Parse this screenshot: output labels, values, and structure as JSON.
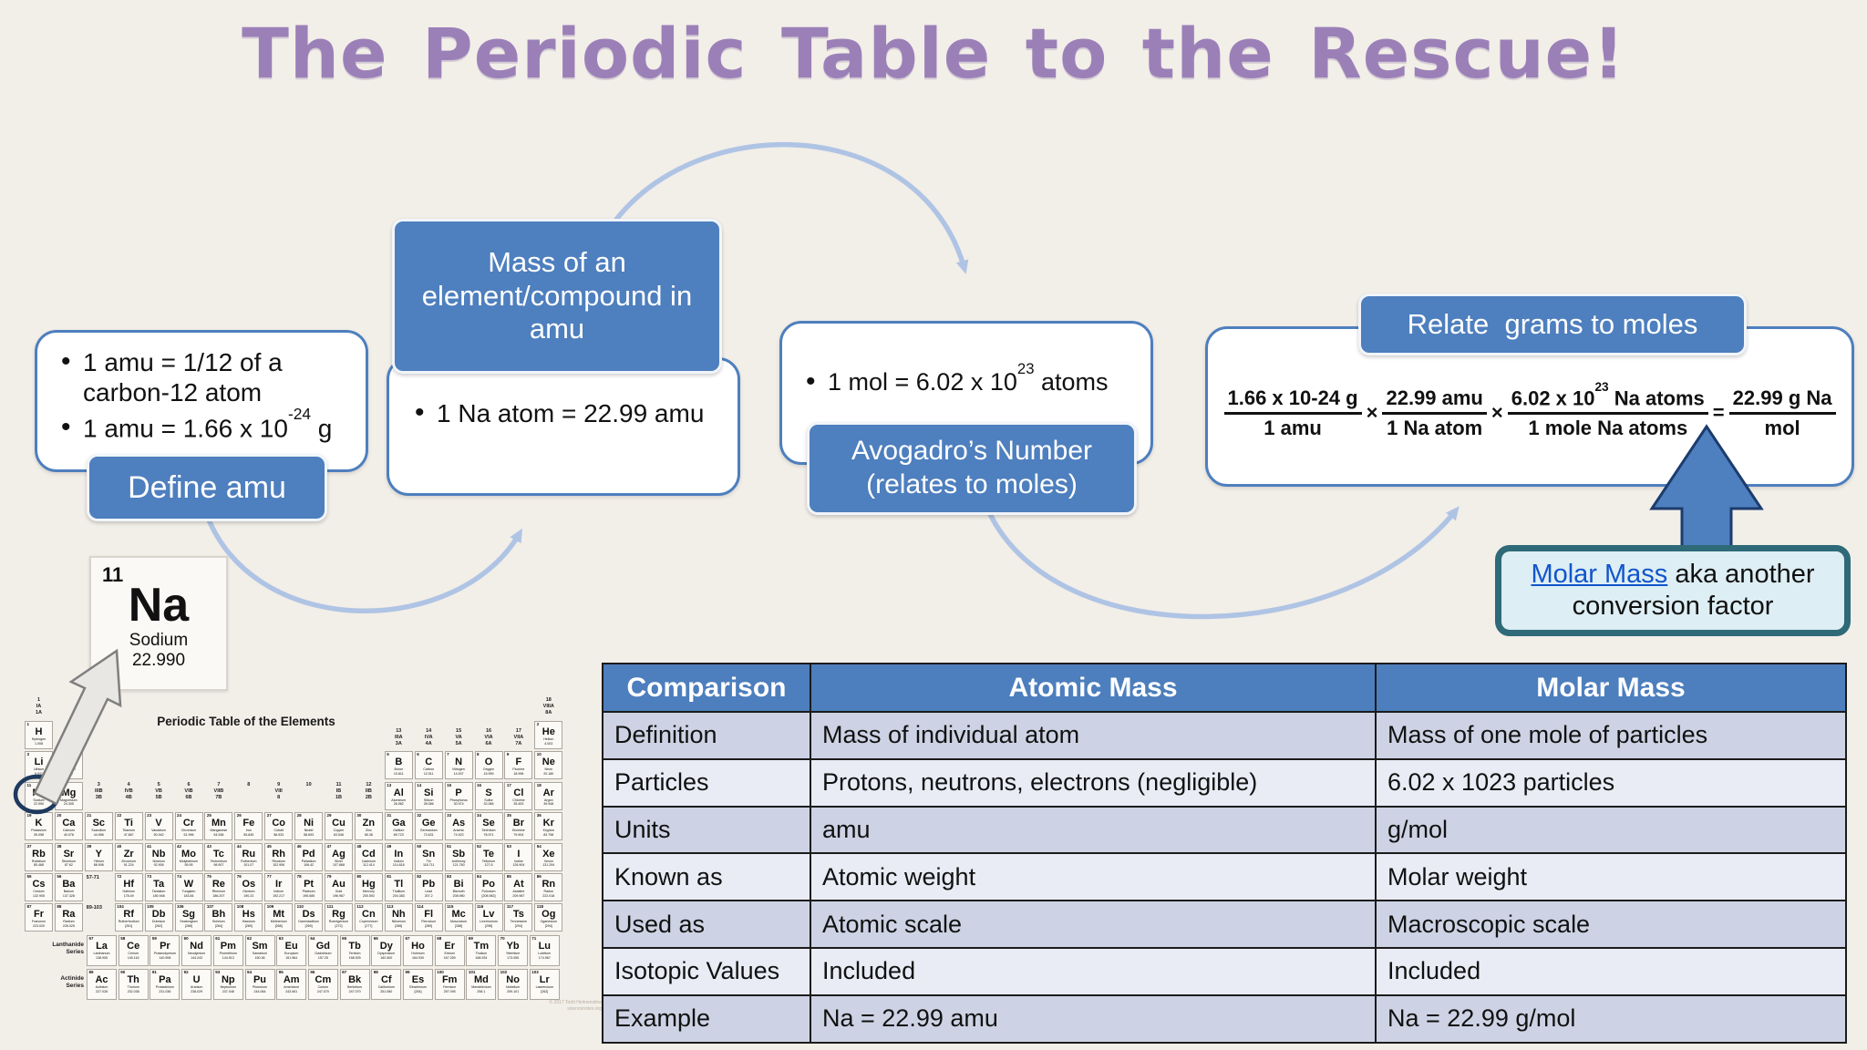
{
  "title": "The Periodic Table to the Rescue!",
  "colors": {
    "background": "#f2eee8",
    "title_purple": "#9b80b8",
    "accent_blue": "#4e7fbe",
    "arc_blue": "#afc4e4",
    "callout_bg": "#ddeef4",
    "callout_border": "#2e6a78",
    "table_header_blue": "#4d7ebd",
    "table_row_dark": "#cdd3e4",
    "table_row_light": "#e9ecf5",
    "link_blue": "#1155cc"
  },
  "flow": {
    "define_amu": {
      "label": "Define amu",
      "bullet1": "1 amu = 1/12 of a carbon-12 atom",
      "bullet2_pre": "1 amu = 1.66 x 10",
      "bullet2_sup": "-24",
      "bullet2_post": " g"
    },
    "mass_amu": {
      "label": "Mass of an element/compound in amu",
      "bullet": "1 Na atom = 22.99 amu"
    },
    "avogadro": {
      "label": "Avogadro’s Number\n(relates to moles)",
      "bullet_pre": "1 mol = 6.02 x 10",
      "bullet_sup": "23",
      "bullet_post": " atoms"
    },
    "relate": {
      "label": "Relate  grams to moles",
      "fractions": [
        {
          "num_pre": "1.66 x 10-24 g",
          "num_sup": "",
          "num_post": "",
          "den": "1 amu",
          "op": "×"
        },
        {
          "num_pre": "22.99 amu",
          "num_sup": "",
          "num_post": "",
          "den": "1 Na atom",
          "op": "×"
        },
        {
          "num_pre": "6.02 x 10",
          "num_sup": "23",
          "num_post": " Na atoms",
          "den": "1 mole Na atoms",
          "op": "="
        },
        {
          "num_pre": "22.99 g Na",
          "num_sup": "",
          "num_post": "",
          "den": "mol",
          "op": ""
        }
      ]
    }
  },
  "callout": {
    "link": "Molar Mass",
    "after_link": " aka another",
    "line2": "conversion factor"
  },
  "na_card": {
    "number": "11",
    "symbol": "Na",
    "name": "Sodium",
    "mass": "22.990"
  },
  "periodic_table": {
    "title": "Periodic Table of the Elements",
    "lanthanide_label": "Lanthanide\nSeries",
    "actinide_label": "Actinide\nSeries",
    "lanthanide_range": "57-71",
    "actinide_range": "89-103",
    "credit": "© 2017 Todd Helmenstine\nsciencenotes.org",
    "group_labels": [
      {
        "col": 1,
        "level": "top",
        "lines": "1\nIA\n1A"
      },
      {
        "col": 2,
        "level": "second",
        "lines": "2\nIIA\n2A"
      },
      {
        "col": 3,
        "level": "mid",
        "lines": "3\nIIIB\n3B"
      },
      {
        "col": 4,
        "level": "mid",
        "lines": "4\nIVB\n4B"
      },
      {
        "col": 5,
        "level": "mid",
        "lines": "5\nVB\n5B"
      },
      {
        "col": 6,
        "level": "mid",
        "lines": "6\nVIB\n6B"
      },
      {
        "col": 7,
        "level": "mid",
        "lines": "7\nVIIB\n7B"
      },
      {
        "col": 8,
        "level": "mid",
        "lines": "8"
      },
      {
        "col": 9,
        "level": "mid",
        "lines": "9\nVIII\n8"
      },
      {
        "col": 10,
        "level": "mid",
        "lines": "10"
      },
      {
        "col": 11,
        "level": "mid",
        "lines": "11\nIB\n1B"
      },
      {
        "col": 12,
        "level": "mid",
        "lines": "12\nIIB\n2B"
      },
      {
        "col": 13,
        "level": "second",
        "lines": "13\nIIIA\n3A"
      },
      {
        "col": 14,
        "level": "second",
        "lines": "14\nIVA\n4A"
      },
      {
        "col": 15,
        "level": "second",
        "lines": "15\nVA\n5A"
      },
      {
        "col": 16,
        "level": "second",
        "lines": "16\nVIA\n6A"
      },
      {
        "col": 17,
        "level": "second",
        "lines": "17\nVIIA\n7A"
      },
      {
        "col": 18,
        "level": "top",
        "lines": "18\nVIIIA\n8A"
      }
    ],
    "rows": [
      [
        [
          1,
          "H",
          "Hydrogen",
          "1.008",
          1
        ],
        [
          2,
          "He",
          "Helium",
          "4.003",
          18
        ]
      ],
      [
        [
          3,
          "Li",
          "Lithium",
          "6.941",
          1
        ],
        [
          4,
          "Be",
          "Beryllium",
          "9.012",
          2
        ],
        [
          5,
          "B",
          "Boron",
          "10.811",
          13
        ],
        [
          6,
          "C",
          "Carbon",
          "12.011",
          14
        ],
        [
          7,
          "N",
          "Nitrogen",
          "14.007",
          15
        ],
        [
          8,
          "O",
          "Oxygen",
          "15.999",
          16
        ],
        [
          9,
          "F",
          "Fluorine",
          "18.998",
          17
        ],
        [
          10,
          "Ne",
          "Neon",
          "20.180",
          18
        ]
      ],
      [
        [
          11,
          "Na",
          "Sodium",
          "22.990",
          1
        ],
        [
          12,
          "Mg",
          "Magnesium",
          "24.305",
          2
        ],
        [
          13,
          "Al",
          "Aluminum",
          "26.982",
          13
        ],
        [
          14,
          "Si",
          "Silicon",
          "28.086",
          14
        ],
        [
          15,
          "P",
          "Phosphorus",
          "30.974",
          15
        ],
        [
          16,
          "S",
          "Sulfur",
          "32.066",
          16
        ],
        [
          17,
          "Cl",
          "Chlorine",
          "35.453",
          17
        ],
        [
          18,
          "Ar",
          "Argon",
          "39.948",
          18
        ]
      ],
      [
        [
          19,
          "K",
          "Potassium",
          "39.098",
          1
        ],
        [
          20,
          "Ca",
          "Calcium",
          "40.078",
          2
        ],
        [
          21,
          "Sc",
          "Scandium",
          "44.956",
          3
        ],
        [
          22,
          "Ti",
          "Titanium",
          "47.867",
          4
        ],
        [
          23,
          "V",
          "Vanadium",
          "50.942",
          5
        ],
        [
          24,
          "Cr",
          "Chromium",
          "51.996",
          6
        ],
        [
          25,
          "Mn",
          "Manganese",
          "54.938",
          7
        ],
        [
          26,
          "Fe",
          "Iron",
          "55.845",
          8
        ],
        [
          27,
          "Co",
          "Cobalt",
          "58.933",
          9
        ],
        [
          28,
          "Ni",
          "Nickel",
          "58.693",
          10
        ],
        [
          29,
          "Cu",
          "Copper",
          "63.546",
          11
        ],
        [
          30,
          "Zn",
          "Zinc",
          "65.38",
          12
        ],
        [
          31,
          "Ga",
          "Gallium",
          "69.723",
          13
        ],
        [
          32,
          "Ge",
          "Germanium",
          "72.631",
          14
        ],
        [
          33,
          "As",
          "Arsenic",
          "74.922",
          15
        ],
        [
          34,
          "Se",
          "Selenium",
          "78.971",
          16
        ],
        [
          35,
          "Br",
          "Bromine",
          "79.904",
          17
        ],
        [
          36,
          "Kr",
          "Krypton",
          "83.798",
          18
        ]
      ],
      [
        [
          37,
          "Rb",
          "Rubidium",
          "85.468",
          1
        ],
        [
          38,
          "Sr",
          "Strontium",
          "87.62",
          2
        ],
        [
          39,
          "Y",
          "Yttrium",
          "88.906",
          3
        ],
        [
          40,
          "Zr",
          "Zirconium",
          "91.224",
          4
        ],
        [
          41,
          "Nb",
          "Niobium",
          "92.906",
          5
        ],
        [
          42,
          "Mo",
          "Molybdenum",
          "95.95",
          6
        ],
        [
          43,
          "Tc",
          "Technetium",
          "98.907",
          7
        ],
        [
          44,
          "Ru",
          "Ruthenium",
          "101.07",
          8
        ],
        [
          45,
          "Rh",
          "Rhodium",
          "102.906",
          9
        ],
        [
          46,
          "Pd",
          "Palladium",
          "106.42",
          10
        ],
        [
          47,
          "Ag",
          "Silver",
          "107.868",
          11
        ],
        [
          48,
          "Cd",
          "Cadmium",
          "112.414",
          12
        ],
        [
          49,
          "In",
          "Indium",
          "114.818",
          13
        ],
        [
          50,
          "Sn",
          "Tin",
          "118.711",
          14
        ],
        [
          51,
          "Sb",
          "Antimony",
          "121.760",
          15
        ],
        [
          52,
          "Te",
          "Tellurium",
          "127.6",
          16
        ],
        [
          53,
          "I",
          "Iodine",
          "126.904",
          17
        ],
        [
          54,
          "Xe",
          "Xenon",
          "131.294",
          18
        ]
      ],
      [
        [
          55,
          "Cs",
          "Cesium",
          "132.905",
          1
        ],
        [
          56,
          "Ba",
          "Barium",
          "137.328",
          2
        ],
        [
          72,
          "Hf",
          "Hafnium",
          "178.49",
          4
        ],
        [
          73,
          "Ta",
          "Tantalum",
          "180.948",
          5
        ],
        [
          74,
          "W",
          "Tungsten",
          "183.84",
          6
        ],
        [
          75,
          "Re",
          "Rhenium",
          "186.207",
          7
        ],
        [
          76,
          "Os",
          "Osmium",
          "190.23",
          8
        ],
        [
          77,
          "Ir",
          "Iridium",
          "192.217",
          9
        ],
        [
          78,
          "Pt",
          "Platinum",
          "195.085",
          10
        ],
        [
          79,
          "Au",
          "Gold",
          "196.967",
          11
        ],
        [
          80,
          "Hg",
          "Mercury",
          "200.592",
          12
        ],
        [
          81,
          "Tl",
          "Thallium",
          "204.383",
          13
        ],
        [
          82,
          "Pb",
          "Lead",
          "207.2",
          14
        ],
        [
          83,
          "Bi",
          "Bismuth",
          "208.980",
          15
        ],
        [
          84,
          "Po",
          "Polonium",
          "[208.982]",
          16
        ],
        [
          85,
          "At",
          "Astatine",
          "209.987",
          17
        ],
        [
          86,
          "Rn",
          "Radon",
          "222.018",
          18
        ]
      ],
      [
        [
          87,
          "Fr",
          "Francium",
          "223.020",
          1
        ],
        [
          88,
          "Ra",
          "Radium",
          "226.025",
          2
        ],
        [
          104,
          "Rf",
          "Rutherfordium",
          "[261]",
          4
        ],
        [
          105,
          "Db",
          "Dubnium",
          "[262]",
          5
        ],
        [
          106,
          "Sg",
          "Seaborgium",
          "[266]",
          6
        ],
        [
          107,
          "Bh",
          "Bohrium",
          "[264]",
          7
        ],
        [
          108,
          "Hs",
          "Hassium",
          "[269]",
          8
        ],
        [
          109,
          "Mt",
          "Meitnerium",
          "[268]",
          9
        ],
        [
          110,
          "Ds",
          "Darmstadtium",
          "[269]",
          10
        ],
        [
          111,
          "Rg",
          "Roentgenium",
          "[272]",
          11
        ],
        [
          112,
          "Cn",
          "Copernicium",
          "[277]",
          12
        ],
        [
          113,
          "Nh",
          "Nihonium",
          "[286]",
          13
        ],
        [
          114,
          "Fl",
          "Flerovium",
          "[289]",
          14
        ],
        [
          115,
          "Mc",
          "Moscovium",
          "[288]",
          15
        ],
        [
          116,
          "Lv",
          "Livermorium",
          "[298]",
          16
        ],
        [
          117,
          "Ts",
          "Tennessine",
          "[294]",
          17
        ],
        [
          118,
          "Og",
          "Oganesson",
          "[294]",
          18
        ]
      ]
    ],
    "lanthanides": [
      [
        57,
        "La",
        "Lanthanum",
        "138.905"
      ],
      [
        58,
        "Ce",
        "Cerium",
        "140.116"
      ],
      [
        59,
        "Pr",
        "Praseodymium",
        "140.908"
      ],
      [
        60,
        "Nd",
        "Neodymium",
        "144.243"
      ],
      [
        61,
        "Pm",
        "Promethium",
        "144.913"
      ],
      [
        62,
        "Sm",
        "Samarium",
        "150.36"
      ],
      [
        63,
        "Eu",
        "Europium",
        "151.964"
      ],
      [
        64,
        "Gd",
        "Gadolinium",
        "157.25"
      ],
      [
        65,
        "Tb",
        "Terbium",
        "158.925"
      ],
      [
        66,
        "Dy",
        "Dysprosium",
        "162.500"
      ],
      [
        67,
        "Ho",
        "Holmium",
        "164.930"
      ],
      [
        68,
        "Er",
        "Erbium",
        "167.259"
      ],
      [
        69,
        "Tm",
        "Thulium",
        "168.934"
      ],
      [
        70,
        "Yb",
        "Ytterbium",
        "173.055"
      ],
      [
        71,
        "Lu",
        "Lutetium",
        "174.967"
      ]
    ],
    "actinides": [
      [
        89,
        "Ac",
        "Actinium",
        "227.028"
      ],
      [
        90,
        "Th",
        "Thorium",
        "232.038"
      ],
      [
        91,
        "Pa",
        "Protactinium",
        "231.036"
      ],
      [
        92,
        "U",
        "Uranium",
        "238.029"
      ],
      [
        93,
        "Np",
        "Neptunium",
        "237.048"
      ],
      [
        94,
        "Pu",
        "Plutonium",
        "244.064"
      ],
      [
        95,
        "Am",
        "Americium",
        "243.061"
      ],
      [
        96,
        "Cm",
        "Curium",
        "247.070"
      ],
      [
        97,
        "Bk",
        "Berkelium",
        "247.070"
      ],
      [
        98,
        "Cf",
        "Californium",
        "251.080"
      ],
      [
        99,
        "Es",
        "Einsteinium",
        "[254]"
      ],
      [
        100,
        "Fm",
        "Fermium",
        "257.095"
      ],
      [
        101,
        "Md",
        "Mendelevium",
        "258.1"
      ],
      [
        102,
        "No",
        "Nobelium",
        "259.101"
      ],
      [
        103,
        "Lr",
        "Lawrencium",
        "[262]"
      ]
    ]
  },
  "comparison_table": {
    "headers": [
      "Comparison",
      "Atomic Mass",
      "Molar Mass"
    ],
    "rows": [
      [
        "Definition",
        "Mass of individual atom",
        "Mass of one mole of particles"
      ],
      [
        "Particles",
        "Protons, neutrons, electrons (negligible)",
        "6.02 x 1023 particles"
      ],
      [
        "Units",
        "amu",
        "g/mol"
      ],
      [
        "Known as",
        "Atomic weight",
        "Molar weight"
      ],
      [
        "Used as",
        "Atomic scale",
        "Macroscopic scale"
      ],
      [
        "Isotopic Values",
        "Included",
        "Included"
      ],
      [
        "Example",
        "Na = 22.99 amu",
        "Na = 22.99 g/mol"
      ]
    ]
  }
}
